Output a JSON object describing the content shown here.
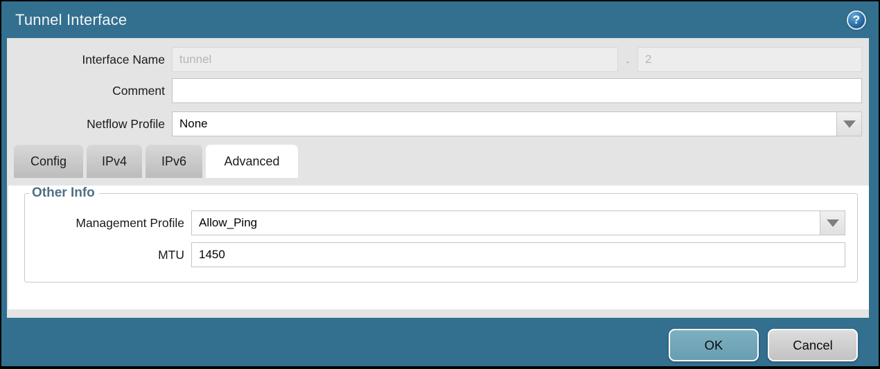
{
  "window": {
    "title": "Tunnel Interface",
    "help_icon": "?"
  },
  "form": {
    "interface_name": {
      "label": "Interface Name",
      "value": "tunnel",
      "separator": ".",
      "sub_value": "2"
    },
    "comment": {
      "label": "Comment",
      "value": ""
    },
    "netflow_profile": {
      "label": "Netflow Profile",
      "value": "None"
    }
  },
  "tabs": [
    {
      "label": "Config",
      "active": false
    },
    {
      "label": "IPv4",
      "active": false
    },
    {
      "label": "IPv6",
      "active": false
    },
    {
      "label": "Advanced",
      "active": true
    }
  ],
  "advanced": {
    "group_title": "Other Info",
    "management_profile": {
      "label": "Management Profile",
      "value": "Allow_Ping"
    },
    "mtu": {
      "label": "MTU",
      "value": "1450"
    }
  },
  "footer": {
    "ok": "OK",
    "cancel": "Cancel"
  },
  "colors": {
    "titlebar_teal": "#33708f",
    "body_gray": "#e4e4e4",
    "ok_button": "#72a9bb",
    "group_title": "#4d7186"
  }
}
